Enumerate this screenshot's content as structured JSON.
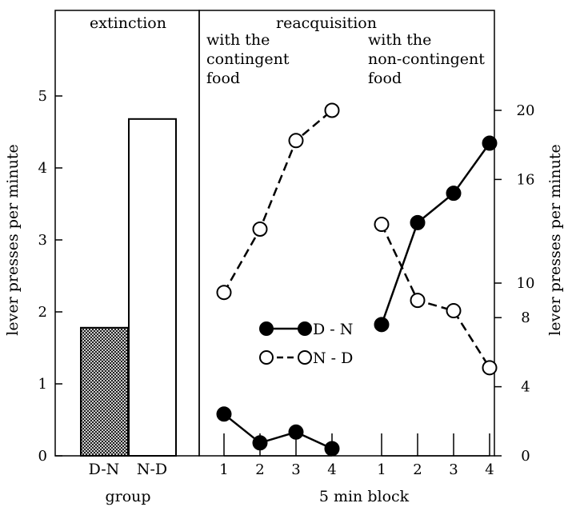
{
  "chart_data": [
    {
      "type": "bar",
      "title": "extinction",
      "xlabel": "group",
      "ylabel": "lever presses per minute",
      "ylim": [
        0,
        5.5
      ],
      "yticks": [
        "0",
        "1",
        "2",
        "3",
        "4",
        "5"
      ],
      "categories": [
        "D-N",
        "N-D"
      ],
      "values": [
        1.78,
        4.68
      ],
      "fills": [
        "crosshatch",
        "white"
      ]
    },
    {
      "type": "line",
      "title": "reacquisition",
      "subtitle": "with the contingent food",
      "xlabel": "5 min block",
      "x": [
        1,
        2,
        3,
        4
      ],
      "xticks": [
        "1",
        "2",
        "3",
        "4"
      ],
      "ylabel": "lever presses per minute",
      "ylim": [
        0,
        5.5
      ],
      "series": [
        {
          "name": "D - N",
          "marker": "filled",
          "style": "solid",
          "values": [
            0.58,
            0.18,
            0.33,
            0.1
          ]
        },
        {
          "name": "N - D",
          "marker": "open",
          "style": "dashed",
          "values": [
            2.27,
            3.15,
            4.38,
            4.8
          ]
        }
      ]
    },
    {
      "type": "line",
      "subtitle": "with the non-contingent food",
      "xlabel": "5 min block",
      "x": [
        1,
        2,
        3,
        4
      ],
      "xticks": [
        "1",
        "2",
        "3",
        "4"
      ],
      "ylabel": "lever presses per minute",
      "ylim": [
        0,
        22
      ],
      "yticks": [
        "0",
        "4",
        "8",
        "10",
        "16",
        "20"
      ],
      "series": [
        {
          "name": "D - N",
          "marker": "filled",
          "style": "solid",
          "values": [
            7.6,
            13.5,
            15.2,
            18.1
          ]
        },
        {
          "name": "N - D",
          "marker": "open",
          "style": "dashed",
          "values": [
            13.4,
            9.0,
            8.4,
            5.1
          ]
        }
      ]
    }
  ],
  "legend": [
    {
      "label": "D - N",
      "marker": "filled",
      "style": "solid"
    },
    {
      "label": "N - D",
      "marker": "open",
      "style": "dashed"
    }
  ],
  "labels": {
    "extinction": "extinction",
    "reacquisition": "reacquisition",
    "contingent": [
      "with the",
      "contingent",
      "food"
    ],
    "noncontingent": [
      "with the",
      "non-contingent",
      "food"
    ],
    "group": "group",
    "block": "5 min block",
    "ylabel_left": "lever presses per minute",
    "ylabel_right": "lever presses per minute",
    "bar_categories": [
      "D-N",
      "N-D"
    ]
  },
  "colors": {
    "ink": "#000000",
    "background": "#ffffff"
  }
}
